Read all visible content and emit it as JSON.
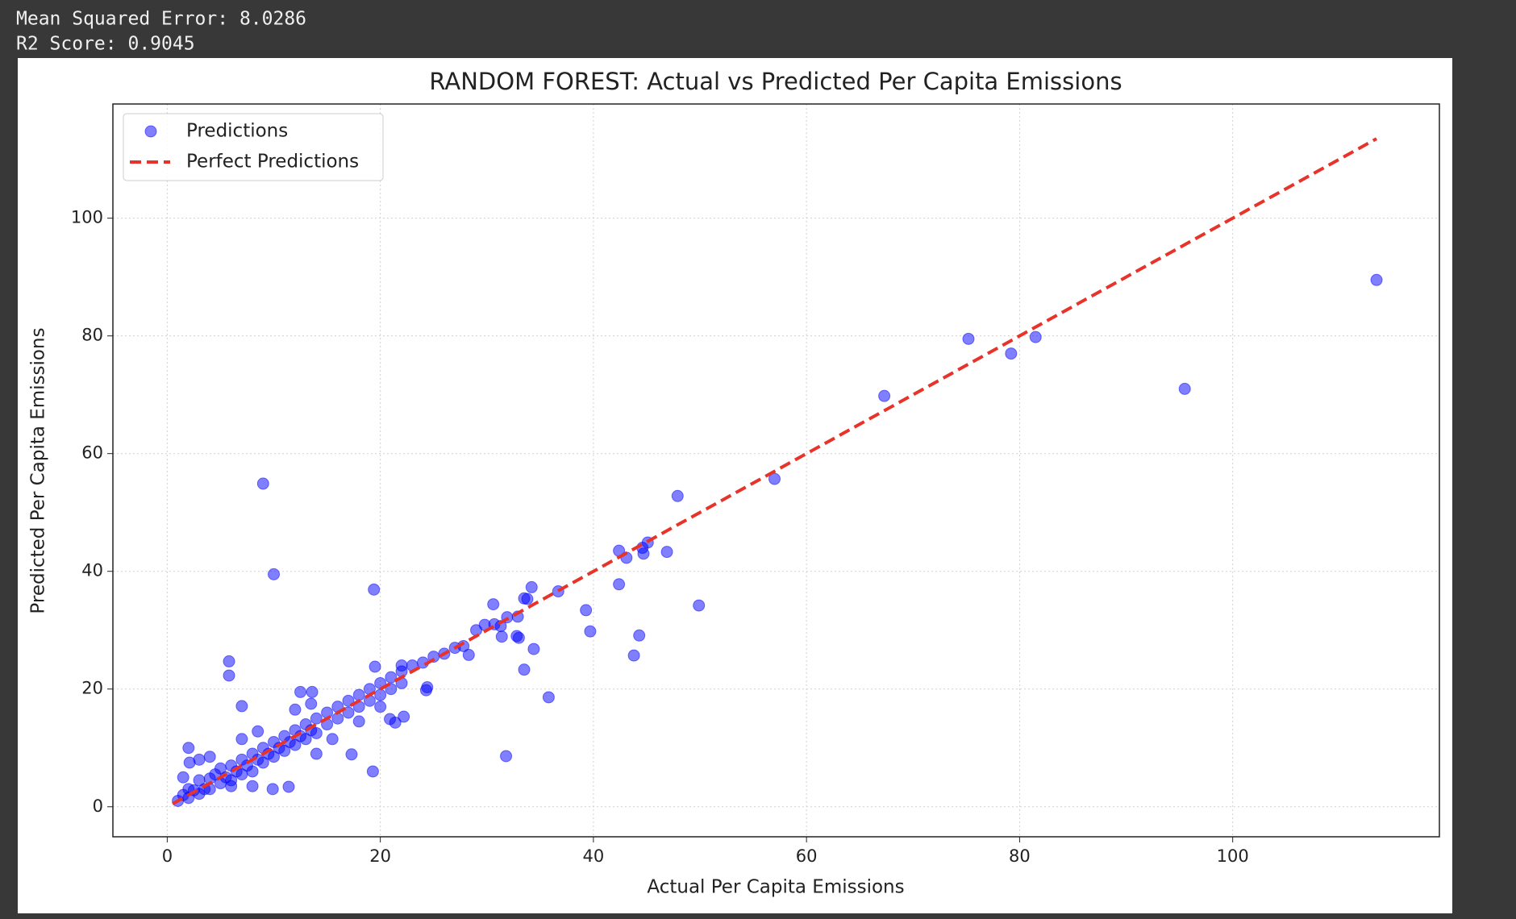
{
  "output_lines": [
    "Mean Squared Error: 8.0286",
    "R2 Score: 0.9045"
  ],
  "chart_data": {
    "type": "scatter",
    "title": "RANDOM FOREST: Actual vs Predicted Per Capita Emissions",
    "xlabel": "Actual Per Capita Emissions",
    "ylabel": "Predicted Per Capita Emissions",
    "xlim": [
      -5.1,
      119.4
    ],
    "ylim": [
      -5.1,
      119.4
    ],
    "xticks": [
      0,
      20,
      40,
      60,
      80,
      100
    ],
    "yticks": [
      0,
      20,
      40,
      60,
      80,
      100
    ],
    "grid": true,
    "legend": "upper left",
    "series": [
      {
        "name": "Predictions",
        "kind": "scatter",
        "color": "#0000ff",
        "alpha": 0.5,
        "x": [
          113.5,
          95.5,
          81.5,
          79.2,
          75.2,
          67.3,
          57.0,
          47.9,
          45.1,
          44.7,
          44.6,
          42.4,
          43.1,
          46.9,
          42.4,
          49.9,
          44.3,
          43.8,
          39.7,
          39.3,
          36.7,
          34.2,
          33.8,
          33.5,
          35.8,
          31.8,
          34.4,
          33.5,
          33.0,
          32.8,
          31.4,
          32.9,
          31.9,
          30.6,
          30.7,
          31.3,
          29.8,
          29.0,
          9.0,
          10.0,
          19.4,
          5.8,
          5.8,
          7.0,
          19.3,
          17.3,
          11.4,
          9.9,
          19.5,
          22.0,
          21.4,
          20.9,
          22.2,
          24.4,
          24.3,
          13.6,
          28.3,
          27.8,
          1,
          1.5,
          2,
          2,
          2.5,
          3,
          3,
          3.5,
          4,
          4,
          4.5,
          5,
          5,
          5.5,
          6,
          6,
          6.5,
          7,
          7,
          7.5,
          8,
          8,
          8.5,
          9,
          9,
          9.5,
          10,
          10,
          10.5,
          11,
          11,
          11.5,
          12,
          12,
          12.5,
          13,
          13,
          13.5,
          14,
          14,
          15,
          15,
          16,
          16,
          17,
          17,
          18,
          18,
          19,
          19,
          20,
          20,
          21,
          21,
          22,
          22,
          23,
          24,
          25,
          26,
          27,
          2,
          2.1,
          3,
          7,
          8.5,
          12,
          13.5,
          8,
          6,
          14,
          15.5,
          18,
          20,
          1.5,
          4,
          12.5
        ],
        "values": [
          89.5,
          71,
          79.8,
          77,
          79.5,
          69.8,
          55.7,
          52.8,
          44.9,
          43,
          44,
          43.5,
          42.3,
          43.3,
          37.8,
          34.2,
          29.1,
          25.7,
          29.8,
          33.4,
          36.6,
          37.3,
          35.3,
          35.4,
          18.6,
          8.6,
          26.8,
          23.3,
          28.7,
          29.0,
          28.9,
          32.3,
          32.2,
          34.4,
          31.0,
          30.7,
          30.9,
          30.0,
          54.9,
          39.5,
          36.9,
          24.7,
          22.3,
          17.1,
          6.0,
          8.9,
          3.4,
          3.0,
          23.8,
          24.0,
          14.3,
          14.9,
          15.3,
          20.3,
          19.8,
          19.5,
          25.8,
          27.3,
          1,
          2,
          1.5,
          3,
          2.8,
          2.2,
          4.5,
          3,
          4.8,
          3,
          5.5,
          4,
          6.5,
          5,
          7,
          4.5,
          6,
          8,
          5.5,
          7,
          9,
          6,
          8,
          10,
          7.5,
          9,
          11,
          8.5,
          10,
          12,
          9.5,
          11,
          13,
          10.5,
          12,
          14,
          11.5,
          13,
          15,
          12.5,
          16,
          14,
          17,
          15,
          18,
          16,
          19,
          17,
          20,
          18,
          21,
          19,
          22,
          20,
          23,
          21,
          24,
          24.5,
          25.5,
          26,
          27,
          10,
          7.5,
          8,
          11.5,
          12.8,
          16.5,
          17.5,
          3.5,
          3.5,
          9,
          11.5,
          14.5,
          17,
          5,
          8.5,
          19.5
        ]
      },
      {
        "name": "Perfect Predictions",
        "kind": "line",
        "color": "#e8332a",
        "dash": "dashed",
        "x": [
          0.5,
          113.5
        ],
        "values": [
          0.5,
          113.5
        ]
      }
    ]
  }
}
